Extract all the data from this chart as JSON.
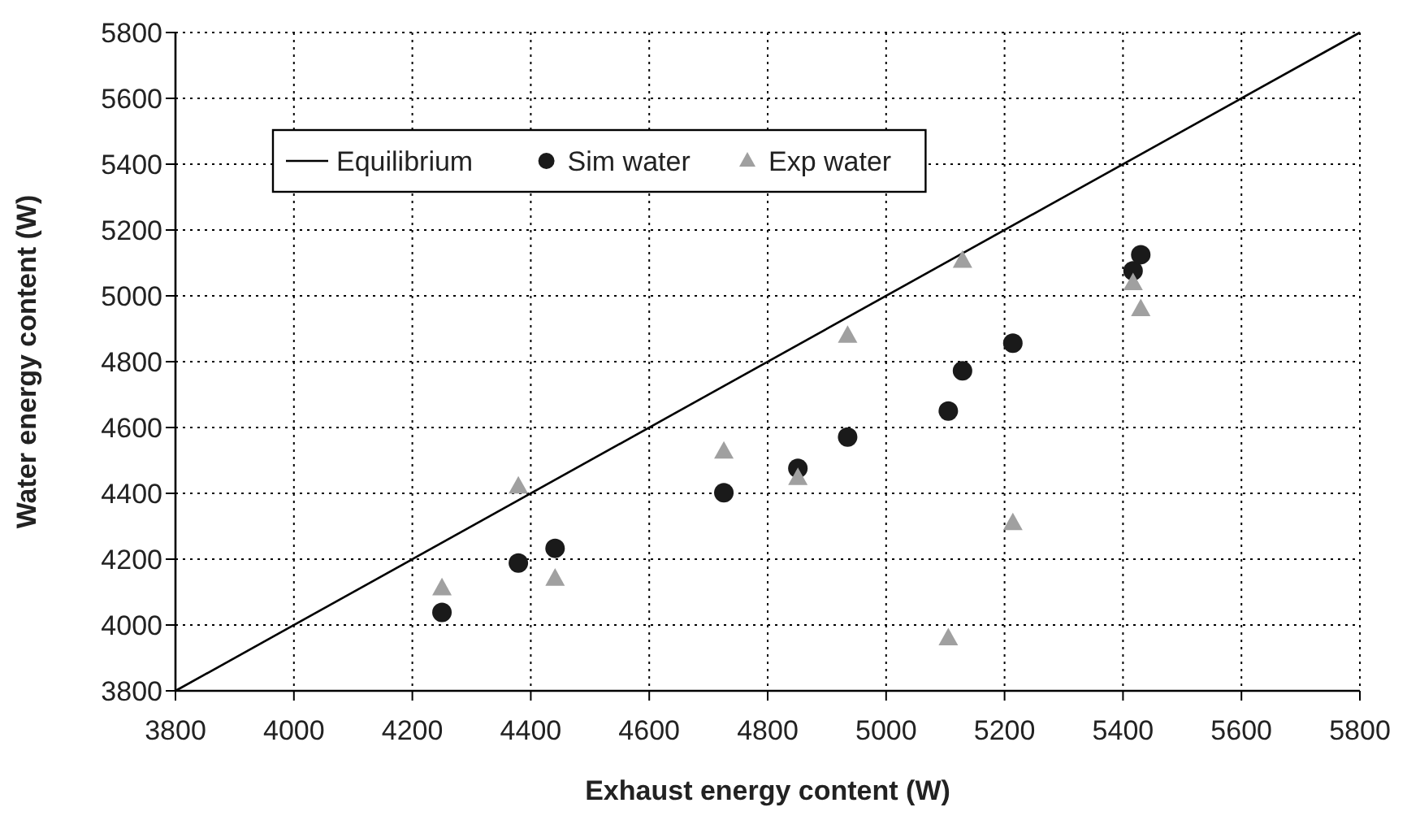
{
  "chart_data": {
    "type": "scatter",
    "xlabel": "Exhaust  energy content (W)",
    "ylabel": "Water energy content (W)",
    "xlim": [
      3800,
      5800
    ],
    "ylim": [
      3800,
      5800
    ],
    "xticks": [
      3800,
      4000,
      4200,
      4400,
      4600,
      4800,
      5000,
      5200,
      5400,
      5600,
      5800
    ],
    "yticks": [
      3800,
      4000,
      4200,
      4400,
      4600,
      4800,
      5000,
      5200,
      5400,
      5600,
      5800
    ],
    "grid": true,
    "legend": "top left",
    "series": [
      {
        "name": "Equilibrium",
        "type": "line",
        "color": "#000000",
        "marker": "none",
        "line_style": "solid",
        "x": [
          3800,
          5800
        ],
        "values": [
          3800,
          5800
        ]
      },
      {
        "name": "Sim water",
        "color": "#1a1a1a",
        "marker": "circle",
        "x": [
          4250,
          4379,
          4441,
          4726,
          4851,
          4935,
          5105,
          5129,
          5214,
          5417,
          5430
        ],
        "values": [
          4038,
          4188,
          4233,
          4402,
          4476,
          4571,
          4650,
          4772,
          4856,
          5076,
          5125
        ]
      },
      {
        "name": "Exp water",
        "color": "#a0a0a0",
        "marker": "triangle",
        "x": [
          4250,
          4379,
          4441,
          4726,
          4851,
          4935,
          5105,
          5129,
          5214,
          5417,
          5430
        ],
        "values": [
          4111,
          4420,
          4140,
          4526,
          4446,
          4878,
          3959,
          5106,
          4309,
          5038,
          4959
        ]
      }
    ]
  }
}
